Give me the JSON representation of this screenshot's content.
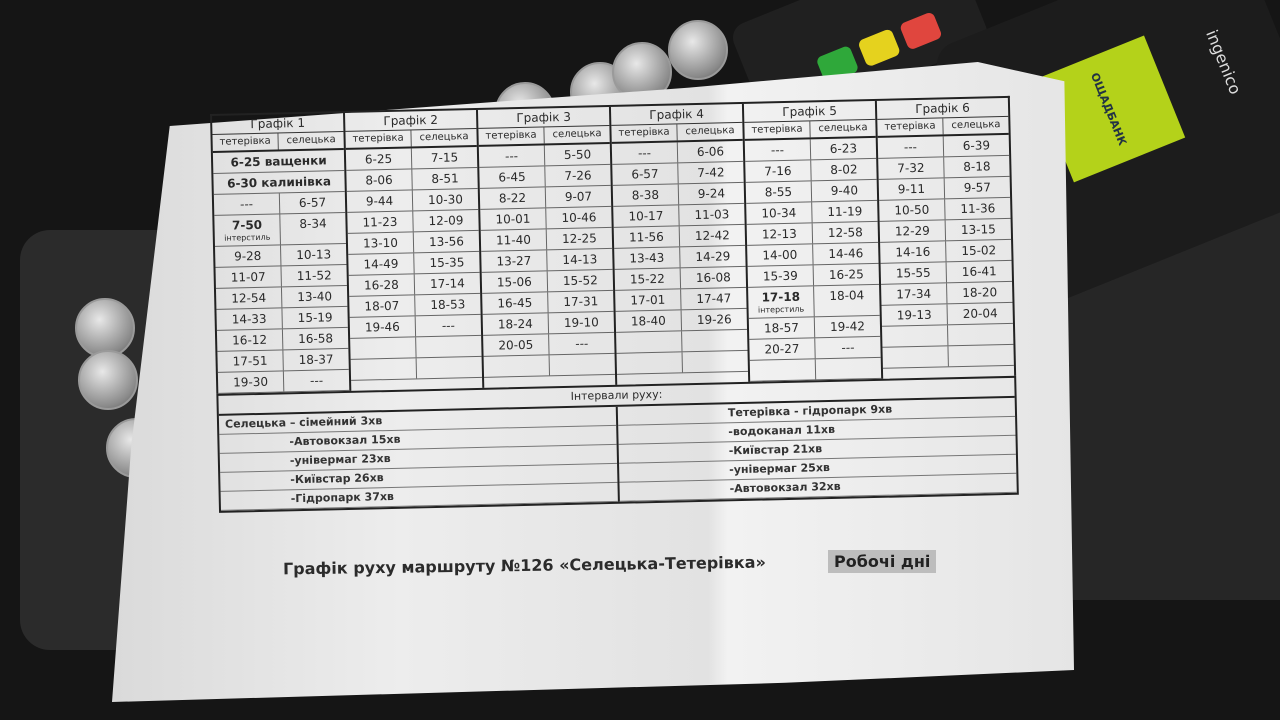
{
  "schedules": [
    {
      "label": "Графік 1",
      "col_a": "тетерівка",
      "col_b": "селецька",
      "notes": [
        "6-25 ващенки",
        "6-30 калинівка"
      ],
      "rows": [
        [
          "---",
          "6-57"
        ],
        [
          "7-50",
          "8-34",
          "інтерстиль"
        ],
        [
          "9-28",
          "10-13"
        ],
        [
          "11-07",
          "11-52"
        ],
        [
          "12-54",
          "13-40"
        ],
        [
          "14-33",
          "15-19"
        ],
        [
          "16-12",
          "16-58"
        ],
        [
          "17-51",
          "18-37"
        ],
        [
          "19-30",
          "---"
        ]
      ]
    },
    {
      "label": "Графік 2",
      "col_a": "тетерівка",
      "col_b": "селецька",
      "notes": [],
      "rows": [
        [
          "6-25",
          "7-15"
        ],
        [
          "8-06",
          "8-51"
        ],
        [
          "9-44",
          "10-30"
        ],
        [
          "11-23",
          "12-09"
        ],
        [
          "13-10",
          "13-56"
        ],
        [
          "14-49",
          "15-35"
        ],
        [
          "16-28",
          "17-14"
        ],
        [
          "18-07",
          "18-53"
        ],
        [
          "19-46",
          "---"
        ]
      ]
    },
    {
      "label": "Графік 3",
      "col_a": "тетерівка",
      "col_b": "селецька",
      "notes": [],
      "rows": [
        [
          "---",
          "5-50"
        ],
        [
          "6-45",
          "7-26"
        ],
        [
          "8-22",
          "9-07"
        ],
        [
          "10-01",
          "10-46"
        ],
        [
          "11-40",
          "12-25"
        ],
        [
          "13-27",
          "14-13"
        ],
        [
          "15-06",
          "15-52"
        ],
        [
          "16-45",
          "17-31"
        ],
        [
          "18-24",
          "19-10"
        ],
        [
          "20-05",
          "---"
        ]
      ]
    },
    {
      "label": "Графік 4",
      "col_a": "тетерівка",
      "col_b": "селецька",
      "notes": [],
      "rows": [
        [
          "---",
          "6-06"
        ],
        [
          "6-57",
          "7-42"
        ],
        [
          "8-38",
          "9-24"
        ],
        [
          "10-17",
          "11-03"
        ],
        [
          "11-56",
          "12-42"
        ],
        [
          "13-43",
          "14-29"
        ],
        [
          "15-22",
          "16-08"
        ],
        [
          "17-01",
          "17-47"
        ],
        [
          "18-40",
          "19-26"
        ]
      ]
    },
    {
      "label": "Графік 5",
      "col_a": "тетерівка",
      "col_b": "селецька",
      "notes": [],
      "rows": [
        [
          "---",
          "6-23"
        ],
        [
          "7-16",
          "8-02"
        ],
        [
          "8-55",
          "9-40"
        ],
        [
          "10-34",
          "11-19"
        ],
        [
          "12-13",
          "12-58"
        ],
        [
          "14-00",
          "14-46"
        ],
        [
          "15-39",
          "16-25"
        ],
        [
          "17-18",
          "18-04",
          "інтерстиль"
        ],
        [
          "18-57",
          "19-42"
        ],
        [
          "20-27",
          "---"
        ]
      ]
    },
    {
      "label": "Графік 6",
      "col_a": "тетерівка",
      "col_b": "селецька",
      "notes": [],
      "rows": [
        [
          "---",
          "6-39"
        ],
        [
          "7-32",
          "8-18"
        ],
        [
          "9-11",
          "9-57"
        ],
        [
          "10-50",
          "11-36"
        ],
        [
          "12-29",
          "13-15"
        ],
        [
          "14-16",
          "15-02"
        ],
        [
          "15-55",
          "16-41"
        ],
        [
          "17-34",
          "18-20"
        ],
        [
          "19-13",
          "20-04"
        ]
      ]
    }
  ],
  "intervals": {
    "title": "Інтервали руху:",
    "left": [
      "Селецька – сімейний 3хв",
      "-Автовокзал 15хв",
      "-універмаг 23хв",
      "-Київстар 26хв",
      "-Гідропарк 37хв"
    ],
    "right": [
      "Тетерівка - гідропарк 9хв",
      "-водоканал 11хв",
      "-Київстар 21хв",
      "-універмаг 25хв",
      "-Автовокзал 32хв"
    ]
  },
  "title": "Графік руху маршруту №126 «Селецька-Тетерівка»",
  "days": "Робочі дні",
  "terminal": {
    "bank": "ОЩАДБАНК",
    "brand": "ingenico",
    "screen_color": "#b4d21a"
  }
}
